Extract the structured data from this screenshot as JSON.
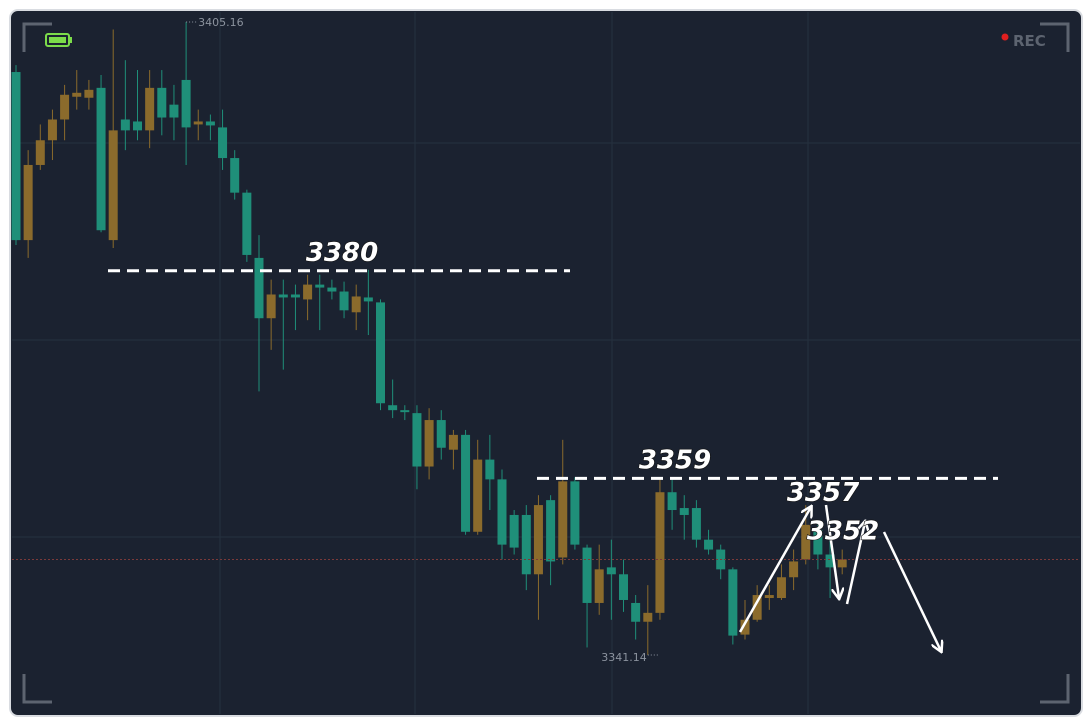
{
  "chart_data": {
    "type": "candlestick",
    "open": [
      3400.1,
      3383.1,
      3390.7,
      3393.2,
      3395.3,
      3397.6,
      3397.5,
      3398.5,
      3383.1,
      3395.3,
      3395.1,
      3394.2,
      3398.5,
      3396.8,
      3399.3,
      3394.8,
      3395.1,
      3394.5,
      3391.4,
      3387.9,
      3381.3,
      3375.2,
      3377.6,
      3377.6,
      3377.1,
      3378.6,
      3378.3,
      3377.9,
      3375.8,
      3377.3,
      3376.8,
      3366.4,
      3365.9,
      3365.6,
      3360.2,
      3364.9,
      3361.9,
      3363.4,
      3353.6,
      3360.9,
      3358.9,
      3355.3,
      3355.3,
      3349.3,
      3356.8,
      3351.0,
      3358.7,
      3352.0,
      3346.4,
      3350.0,
      3349.3,
      3346.4,
      3344.5,
      3345.4,
      3357.6,
      3356.0,
      3356.0,
      3352.8,
      3351.8,
      3349.8,
      3343.2,
      3344.7,
      3346.9,
      3346.9,
      3349.0,
      3350.8,
      3353.8,
      3351.3,
      3350.0
    ],
    "high": [
      3400.8,
      3392.2,
      3394.8,
      3396.3,
      3398.8,
      3400.3,
      3399.3,
      3399.8,
      3404.4,
      3401.3,
      3400.3,
      3400.3,
      3400.3,
      3398.8,
      3405.16,
      3396.3,
      3395.8,
      3396.3,
      3392.2,
      3388.2,
      3383.6,
      3379.1,
      3379.1,
      3378.6,
      3379.6,
      3379.6,
      3379.1,
      3378.9,
      3378.6,
      3380.1,
      3377.1,
      3369.0,
      3366.4,
      3366.4,
      3366.1,
      3365.9,
      3363.9,
      3363.9,
      3362.9,
      3363.4,
      3359.9,
      3355.8,
      3356.3,
      3357.3,
      3357.3,
      3362.9,
      3359.1,
      3352.3,
      3352.3,
      3352.8,
      3350.8,
      3347.2,
      3348.2,
      3358.9,
      3358.9,
      3357.3,
      3356.8,
      3353.8,
      3352.3,
      3350.0,
      3346.7,
      3348.2,
      3348.2,
      3350.3,
      3351.8,
      3356.3,
      3354.8,
      3352.8,
      3351.8
    ],
    "low": [
      3382.6,
      3381.3,
      3390.2,
      3391.2,
      3393.2,
      3396.3,
      3396.3,
      3383.9,
      3382.3,
      3392.2,
      3393.2,
      3392.4,
      3393.7,
      3393.2,
      3390.7,
      3393.2,
      3393.2,
      3390.2,
      3387.2,
      3380.9,
      3367.8,
      3372.0,
      3370.0,
      3374.0,
      3375.0,
      3374.0,
      3377.1,
      3375.2,
      3374.0,
      3373.5,
      3365.9,
      3365.1,
      3364.9,
      3357.9,
      3358.9,
      3360.9,
      3359.9,
      3353.3,
      3353.3,
      3355.8,
      3350.8,
      3351.3,
      3347.7,
      3344.7,
      3348.2,
      3350.3,
      3351.8,
      3341.9,
      3345.2,
      3344.7,
      3345.5,
      3342.7,
      3341.14,
      3344.7,
      3353.8,
      3352.8,
      3352.0,
      3351.3,
      3348.8,
      3342.2,
      3342.7,
      3344.5,
      3345.7,
      3346.7,
      3347.7,
      3350.3,
      3349.8,
      3346.9,
      3349.3
    ],
    "close": [
      3383.1,
      3390.7,
      3393.2,
      3395.3,
      3397.8,
      3398.0,
      3398.3,
      3384.1,
      3394.2,
      3394.2,
      3394.2,
      3398.5,
      3395.5,
      3395.5,
      3394.5,
      3395.1,
      3394.7,
      3391.4,
      3387.9,
      3381.6,
      3375.2,
      3377.6,
      3377.3,
      3377.3,
      3378.6,
      3378.3,
      3377.9,
      3376.0,
      3377.4,
      3376.9,
      3366.6,
      3365.9,
      3365.7,
      3360.2,
      3364.9,
      3362.1,
      3363.4,
      3353.6,
      3360.9,
      3358.9,
      3352.3,
      3352.0,
      3349.3,
      3356.3,
      3350.6,
      3358.7,
      3352.3,
      3346.4,
      3349.8,
      3349.3,
      3346.7,
      3344.5,
      3345.4,
      3357.6,
      3355.8,
      3355.3,
      3352.8,
      3351.8,
      3349.8,
      3343.1,
      3344.7,
      3347.2,
      3347.2,
      3349.0,
      3350.6,
      3354.3,
      3351.3,
      3350.0,
      3350.8
    ],
    "up_color": "#8b6b2c",
    "down_color": "#1f8f79",
    "ylim": [
      3335.27,
      3405.97
    ],
    "extremes": [
      3405.16,
      3341.14
    ],
    "levels": [
      3380,
      3359
    ],
    "targets": [
      3357,
      3352
    ]
  },
  "overlay": {
    "rec": "REC"
  }
}
